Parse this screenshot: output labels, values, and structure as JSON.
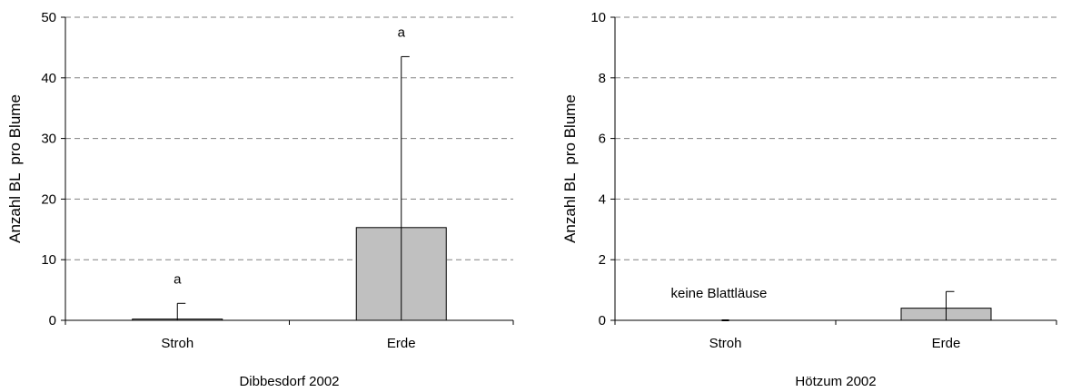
{
  "chart_data": [
    {
      "type": "bar",
      "title": "",
      "xlabel": "Dibbesdorf 2002",
      "ylabel": "Anzahl BL  pro Blume",
      "ylim": [
        0,
        50
      ],
      "yticks": [
        0,
        10,
        20,
        30,
        40,
        50
      ],
      "grid": true,
      "categories": [
        "Stroh",
        "Erde"
      ],
      "values": [
        0.2,
        15.3
      ],
      "error_upper": [
        2.8,
        43.5
      ],
      "bar_colors": [
        "#c0c0c0",
        "#c0c0c0"
      ],
      "annotations": [
        "a",
        "a"
      ]
    },
    {
      "type": "bar",
      "title": "",
      "xlabel": "Hötzum 2002",
      "ylabel": "Anzahl BL  pro Blume",
      "ylim": [
        0,
        10
      ],
      "yticks": [
        0,
        2,
        4,
        6,
        8,
        10
      ],
      "grid": true,
      "categories": [
        "Stroh",
        "Erde"
      ],
      "values": [
        0,
        0.4
      ],
      "error_upper": [
        0,
        0.95
      ],
      "bar_colors": [
        "#c0c0c0",
        "#c0c0c0"
      ],
      "annotations": [
        "keine Blattläuse",
        ""
      ]
    }
  ]
}
